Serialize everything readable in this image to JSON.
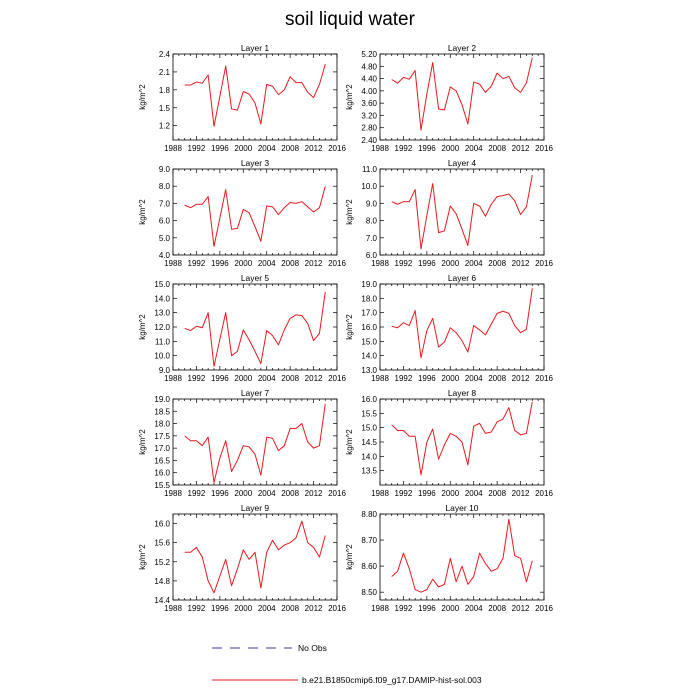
{
  "title": "soil liquid water",
  "colors": {
    "series": "#e8191e",
    "obs": "#3a3a8c",
    "axis": "#000000"
  },
  "legend": {
    "items": [
      {
        "label": "No Obs",
        "style": "dashed",
        "color": "#3a3a8c"
      },
      {
        "label": "b.e21.B1850cmip6.f09_g17.DAMIP-hist-sol.003",
        "style": "solid",
        "color": "#e8191e"
      }
    ]
  },
  "chart_data": [
    {
      "type": "line",
      "title": "Layer 1",
      "ylabel": "kg/m^2",
      "xlim": [
        1988,
        2016
      ],
      "xticks": [
        1988,
        1992,
        1996,
        2000,
        2004,
        2008,
        2012,
        2016
      ],
      "ylim": [
        0.96,
        2.4
      ],
      "yticks": [
        "1.2",
        "1.5",
        "1.8",
        "2.1",
        "2.4"
      ],
      "series": [
        {
          "name": "b.e21.B1850cmip6.f09_g17.DAMIP-hist-sol.003",
          "x": [
            1990,
            1991,
            1992,
            1993,
            1994,
            1995,
            1996,
            1997,
            1998,
            1999,
            2000,
            2001,
            2002,
            2003,
            2004,
            2005,
            2006,
            2007,
            2008,
            2009,
            2010,
            2011,
            2012,
            2013,
            2014
          ],
          "y": [
            1.88,
            1.88,
            1.93,
            1.91,
            2.05,
            1.19,
            1.69,
            2.2,
            1.48,
            1.46,
            1.77,
            1.73,
            1.58,
            1.23,
            1.89,
            1.86,
            1.72,
            1.8,
            2.02,
            1.92,
            1.92,
            1.76,
            1.67,
            1.89,
            2.23
          ]
        }
      ]
    },
    {
      "type": "line",
      "title": "Layer 2",
      "ylabel": "kg/m^2",
      "xlim": [
        1988,
        2016
      ],
      "xticks": [
        1988,
        1992,
        1996,
        2000,
        2004,
        2008,
        2012,
        2016
      ],
      "ylim": [
        2.4,
        5.2
      ],
      "yticks": [
        "2.40",
        "2.80",
        "3.20",
        "3.60",
        "4.00",
        "4.40",
        "4.80",
        "5.20"
      ],
      "series": [
        {
          "name": "b.e21.B1850cmip6.f09_g17.DAMIP-hist-sol.003",
          "x": [
            1990,
            1991,
            1992,
            1993,
            1994,
            1995,
            1996,
            1997,
            1998,
            1999,
            2000,
            2001,
            2002,
            2003,
            2004,
            2005,
            2006,
            2007,
            2008,
            2009,
            2010,
            2011,
            2012,
            2013,
            2014
          ],
          "y": [
            4.37,
            4.25,
            4.44,
            4.38,
            4.66,
            2.72,
            3.9,
            4.92,
            3.41,
            3.38,
            4.13,
            4.0,
            3.55,
            2.92,
            4.29,
            4.22,
            3.95,
            4.15,
            4.58,
            4.4,
            4.47,
            4.1,
            3.95,
            4.26,
            5.08
          ]
        }
      ]
    },
    {
      "type": "line",
      "title": "Layer 3",
      "ylabel": "kg/m^2",
      "xlim": [
        1988,
        2016
      ],
      "xticks": [
        1988,
        1992,
        1996,
        2000,
        2004,
        2008,
        2012,
        2016
      ],
      "ylim": [
        4.0,
        9.0
      ],
      "yticks": [
        "4.0",
        "5.0",
        "6.0",
        "7.0",
        "8.0",
        "9.0"
      ],
      "series": [
        {
          "name": "b.e21.B1850cmip6.f09_g17.DAMIP-hist-sol.003",
          "x": [
            1990,
            1991,
            1992,
            1993,
            1994,
            1995,
            1996,
            1997,
            1998,
            1999,
            2000,
            2001,
            2002,
            2003,
            2004,
            2005,
            2006,
            2007,
            2008,
            2009,
            2010,
            2011,
            2012,
            2013,
            2014
          ],
          "y": [
            6.9,
            6.75,
            6.95,
            6.95,
            7.4,
            4.5,
            6.15,
            7.8,
            5.5,
            5.55,
            6.65,
            6.45,
            5.65,
            4.8,
            6.85,
            6.8,
            6.35,
            6.75,
            7.05,
            7.0,
            7.1,
            6.8,
            6.5,
            6.75,
            8.0
          ]
        }
      ]
    },
    {
      "type": "line",
      "title": "Layer 4",
      "ylabel": "kg/m^2",
      "xlim": [
        1988,
        2016
      ],
      "xticks": [
        1988,
        1992,
        1996,
        2000,
        2004,
        2008,
        2012,
        2016
      ],
      "ylim": [
        6.0,
        11.0
      ],
      "yticks": [
        "6.0",
        "7.0",
        "8.0",
        "9.0",
        "10.0",
        "11.0"
      ],
      "series": [
        {
          "name": "b.e21.B1850cmip6.f09_g17.DAMIP-hist-sol.003",
          "x": [
            1990,
            1991,
            1992,
            1993,
            1994,
            1995,
            1996,
            1997,
            1998,
            1999,
            2000,
            2001,
            2002,
            2003,
            2004,
            2005,
            2006,
            2007,
            2008,
            2009,
            2010,
            2011,
            2012,
            2013,
            2014
          ],
          "y": [
            9.1,
            8.95,
            9.1,
            9.1,
            9.8,
            6.35,
            8.3,
            10.15,
            7.3,
            7.4,
            8.85,
            8.4,
            7.5,
            6.55,
            9.0,
            8.85,
            8.25,
            8.95,
            9.4,
            9.45,
            9.55,
            9.15,
            8.35,
            8.8,
            10.65
          ]
        }
      ]
    },
    {
      "type": "line",
      "title": "Layer 5",
      "ylabel": "kg/m^2",
      "xlim": [
        1988,
        2016
      ],
      "xticks": [
        1988,
        1992,
        1996,
        2000,
        2004,
        2008,
        2012,
        2016
      ],
      "ylim": [
        9.0,
        15.0
      ],
      "yticks": [
        "9.0",
        "10.0",
        "11.0",
        "12.0",
        "13.0",
        "14.0",
        "15.0"
      ],
      "series": [
        {
          "name": "b.e21.B1850cmip6.f09_g17.DAMIP-hist-sol.003",
          "x": [
            1990,
            1991,
            1992,
            1993,
            1994,
            1995,
            1996,
            1997,
            1998,
            1999,
            2000,
            2001,
            2002,
            2003,
            2004,
            2005,
            2006,
            2007,
            2008,
            2009,
            2010,
            2011,
            2012,
            2013,
            2014
          ],
          "y": [
            11.9,
            11.75,
            12.05,
            11.95,
            13.0,
            9.25,
            11.15,
            13.0,
            10.0,
            10.3,
            11.8,
            11.1,
            10.3,
            9.45,
            11.75,
            11.4,
            10.75,
            11.8,
            12.6,
            12.85,
            12.8,
            12.25,
            11.05,
            11.55,
            14.45
          ]
        }
      ]
    },
    {
      "type": "line",
      "title": "Layer 6",
      "ylabel": "kg/m^2",
      "xlim": [
        1988,
        2016
      ],
      "xticks": [
        1988,
        1992,
        1996,
        2000,
        2004,
        2008,
        2012,
        2016
      ],
      "ylim": [
        13.0,
        19.0
      ],
      "yticks": [
        "13.0",
        "14.0",
        "15.0",
        "16.0",
        "17.0",
        "18.0",
        "19.0"
      ],
      "series": [
        {
          "name": "b.e21.B1850cmip6.f09_g17.DAMIP-hist-sol.003",
          "x": [
            1990,
            1991,
            1992,
            1993,
            1994,
            1995,
            1996,
            1997,
            1998,
            1999,
            2000,
            2001,
            2002,
            2003,
            2004,
            2005,
            2006,
            2007,
            2008,
            2009,
            2010,
            2011,
            2012,
            2013,
            2014
          ],
          "y": [
            16.05,
            15.95,
            16.3,
            16.1,
            17.15,
            13.85,
            15.75,
            16.6,
            14.6,
            14.95,
            15.95,
            15.6,
            15.05,
            14.25,
            16.1,
            15.8,
            15.45,
            16.2,
            16.95,
            17.1,
            16.95,
            16.1,
            15.6,
            15.85,
            18.7
          ]
        }
      ]
    },
    {
      "type": "line",
      "title": "Layer 7",
      "ylabel": "kg/m^2",
      "xlim": [
        1988,
        2016
      ],
      "xticks": [
        1988,
        1992,
        1996,
        2000,
        2004,
        2008,
        2012,
        2016
      ],
      "ylim": [
        15.5,
        19.0
      ],
      "yticks": [
        "15.5",
        "16.0",
        "16.5",
        "17.0",
        "17.5",
        "18.0",
        "18.5",
        "19.0"
      ],
      "series": [
        {
          "name": "b.e21.B1850cmip6.f09_g17.DAMIP-hist-sol.003",
          "x": [
            1990,
            1991,
            1992,
            1993,
            1994,
            1995,
            1996,
            1997,
            1998,
            1999,
            2000,
            2001,
            2002,
            2003,
            2004,
            2005,
            2006,
            2007,
            2008,
            2009,
            2010,
            2011,
            2012,
            2013,
            2014
          ],
          "y": [
            17.5,
            17.3,
            17.3,
            17.1,
            17.45,
            15.6,
            16.6,
            17.3,
            16.05,
            16.5,
            17.1,
            17.05,
            16.75,
            15.9,
            17.45,
            17.4,
            16.9,
            17.1,
            17.8,
            17.8,
            18.0,
            17.25,
            17.0,
            17.1,
            18.8
          ]
        }
      ]
    },
    {
      "type": "line",
      "title": "Layer 8",
      "ylabel": "kg/m^2",
      "xlim": [
        1988,
        2016
      ],
      "xticks": [
        1988,
        1992,
        1996,
        2000,
        2004,
        2008,
        2012,
        2016
      ],
      "ylim": [
        13.0,
        16.0
      ],
      "yticks": [
        "13.5",
        "14.0",
        "14.5",
        "15.0",
        "15.5",
        "16.0"
      ],
      "series": [
        {
          "name": "b.e21.B1850cmip6.f09_g17.DAMIP-hist-sol.003",
          "x": [
            1990,
            1991,
            1992,
            1993,
            1994,
            1995,
            1996,
            1997,
            1998,
            1999,
            2000,
            2001,
            2002,
            2003,
            2004,
            2005,
            2006,
            2007,
            2008,
            2009,
            2010,
            2011,
            2012,
            2013,
            2014
          ],
          "y": [
            15.1,
            14.9,
            14.9,
            14.7,
            14.7,
            13.35,
            14.5,
            14.95,
            13.9,
            14.4,
            14.8,
            14.7,
            14.5,
            13.7,
            15.05,
            15.15,
            14.8,
            14.85,
            15.2,
            15.3,
            15.7,
            14.9,
            14.75,
            14.8,
            15.9
          ]
        }
      ]
    },
    {
      "type": "line",
      "title": "Layer 9",
      "ylabel": "kg/m^2",
      "xlim": [
        1988,
        2016
      ],
      "xticks": [
        1988,
        1992,
        1996,
        2000,
        2004,
        2008,
        2012,
        2016
      ],
      "ylim": [
        14.4,
        16.2
      ],
      "yticks": [
        "14.4",
        "14.8",
        "15.2",
        "15.6",
        "16.0"
      ],
      "series": [
        {
          "name": "b.e21.B1850cmip6.f09_g17.DAMIP-hist-sol.003",
          "x": [
            1990,
            1991,
            1992,
            1993,
            1994,
            1995,
            1996,
            1997,
            1998,
            1999,
            2000,
            2001,
            2002,
            2003,
            2004,
            2005,
            2006,
            2007,
            2008,
            2009,
            2010,
            2011,
            2012,
            2013,
            2014
          ],
          "y": [
            15.4,
            15.4,
            15.5,
            15.3,
            14.8,
            14.55,
            14.9,
            15.25,
            14.7,
            15.05,
            15.45,
            15.25,
            15.4,
            14.65,
            15.4,
            15.65,
            15.45,
            15.55,
            15.6,
            15.7,
            16.05,
            15.6,
            15.5,
            15.3,
            15.75
          ]
        }
      ]
    },
    {
      "type": "line",
      "title": "Layer 10",
      "ylabel": "kg/m^2",
      "xlim": [
        1988,
        2016
      ],
      "xticks": [
        1988,
        1992,
        1996,
        2000,
        2004,
        2008,
        2012,
        2016
      ],
      "ylim": [
        8.47,
        8.8
      ],
      "yticks": [
        "8.50",
        "8.60",
        "8.70",
        "8.80"
      ],
      "series": [
        {
          "name": "b.e21.B1850cmip6.f09_g17.DAMIP-hist-sol.003",
          "x": [
            1990,
            1991,
            1992,
            1993,
            1994,
            1995,
            1996,
            1997,
            1998,
            1999,
            2000,
            2001,
            2002,
            2003,
            2004,
            2005,
            2006,
            2007,
            2008,
            2009,
            2010,
            2011,
            2012,
            2013,
            2014
          ],
          "y": [
            8.56,
            8.58,
            8.65,
            8.59,
            8.51,
            8.5,
            8.51,
            8.55,
            8.52,
            8.53,
            8.63,
            8.54,
            8.6,
            8.53,
            8.56,
            8.65,
            8.61,
            8.58,
            8.59,
            8.63,
            8.78,
            8.64,
            8.63,
            8.54,
            8.62
          ]
        }
      ]
    }
  ]
}
